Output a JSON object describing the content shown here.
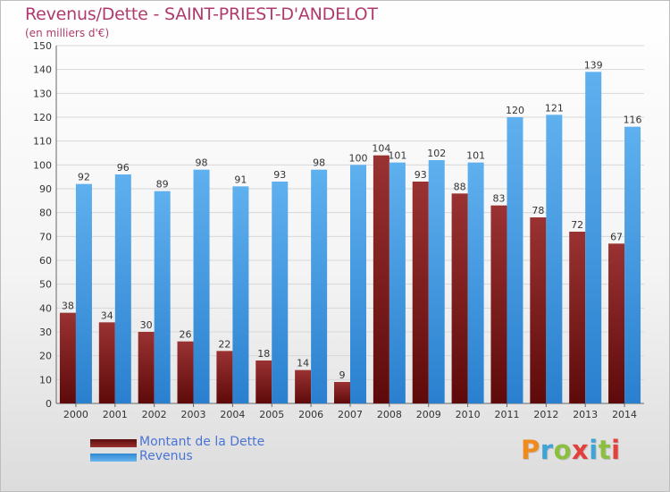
{
  "header": {
    "title": "Revenus/Dette - SAINT-PRIEST-D'ANDELOT",
    "subtitle": "(en milliers d'€)"
  },
  "logo": {
    "letters": [
      "P",
      "r",
      "o",
      "x",
      "i",
      "t",
      "i"
    ],
    "colors": [
      "#f08a1c",
      "#3ea4d6",
      "#8cbf3f",
      "#e2403c",
      "#3ea4d6",
      "#8cbf3f",
      "#e2403c"
    ]
  },
  "chart_data": {
    "type": "bar",
    "categories": [
      "2000",
      "2001",
      "2002",
      "2003",
      "2004",
      "2005",
      "2006",
      "2007",
      "2008",
      "2009",
      "2010",
      "2011",
      "2012",
      "2013",
      "2014"
    ],
    "series": [
      {
        "name": "Montant de la Dette",
        "color": "#7a1a1a",
        "values": [
          38,
          34,
          30,
          26,
          22,
          18,
          14,
          9,
          104,
          93,
          88,
          83,
          78,
          72,
          67
        ]
      },
      {
        "name": "Revenus",
        "color": "#3c97e0",
        "values": [
          92,
          96,
          89,
          98,
          91,
          93,
          98,
          100,
          101,
          102,
          101,
          120,
          121,
          139,
          116
        ]
      }
    ],
    "ylim": [
      0,
      150
    ],
    "yticks": [
      0,
      10,
      20,
      30,
      40,
      50,
      60,
      70,
      80,
      90,
      100,
      110,
      120,
      130,
      140,
      150
    ],
    "grid": true,
    "legend_position": "bottom-left"
  }
}
